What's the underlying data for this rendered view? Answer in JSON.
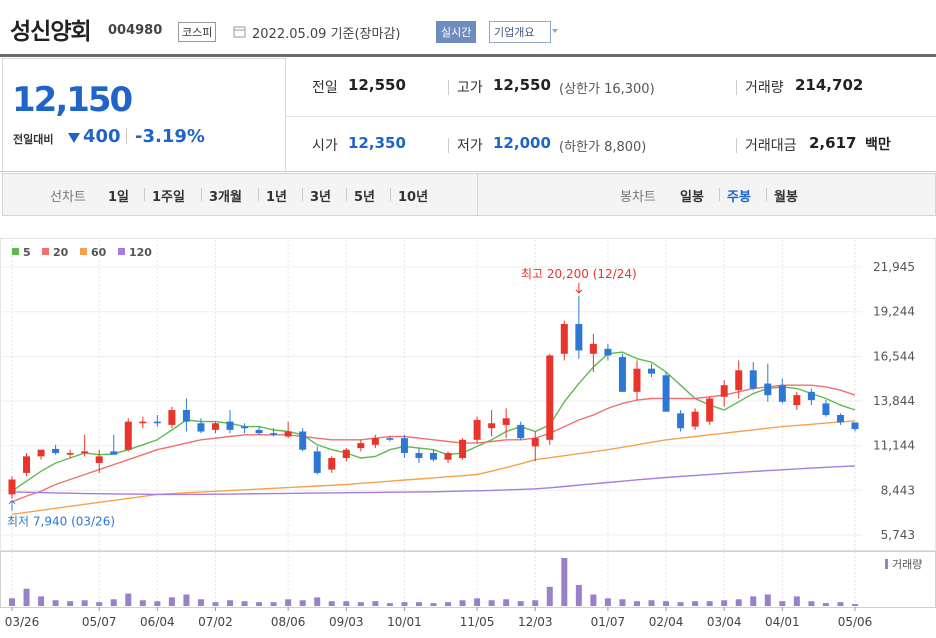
{
  "header": {
    "title": "성신양회",
    "code": "004980",
    "market": "코스피",
    "date": "2022.05.09 기준(장마감)",
    "buttons": [
      "실시간",
      "기업개요"
    ]
  },
  "quote": {
    "price": "12,150",
    "change_label": "전일대비",
    "change": "400",
    "change_rate": "-3.19%",
    "rows": [
      [
        {
          "label": "전일",
          "value": "12,550"
        },
        {
          "label": "고가",
          "value": "12,550",
          "note": "(상한가 16,300)"
        },
        {
          "label": "거래량",
          "value": "214,702"
        }
      ],
      [
        {
          "label": "시가",
          "value": "12,350"
        },
        {
          "label": "저가",
          "value": "12,000",
          "note": "(하한가 8,800)"
        },
        {
          "label": "거래대금",
          "value": "2,617",
          "unit": "백만"
        }
      ]
    ]
  },
  "tabs": {
    "line_label": "선차트",
    "line_periods": [
      "1일",
      "1주일",
      "3개월",
      "1년",
      "3년",
      "5년",
      "10년"
    ],
    "candle_label": "봉차트",
    "candle_periods": [
      "일봉",
      "주봉",
      "월봉"
    ]
  },
  "chart_data": {
    "type": "candlestick",
    "categories": [
      "03/26",
      null,
      null,
      null,
      null,
      null,
      "05/07",
      null,
      null,
      null,
      "06/04",
      null,
      null,
      null,
      "07/02",
      null,
      null,
      null,
      null,
      "08/06",
      null,
      null,
      null,
      "09/03",
      null,
      null,
      null,
      "10/01",
      null,
      null,
      null,
      null,
      "11/05",
      null,
      null,
      null,
      "12/03",
      null,
      null,
      null,
      null,
      "01/07",
      null,
      null,
      null,
      "02/04",
      null,
      null,
      null,
      "03/04",
      null,
      null,
      null,
      "04/01",
      null,
      null,
      null,
      null,
      "05/06"
    ],
    "open": [
      8200,
      9500,
      10500,
      10950,
      10600,
      10700,
      10100,
      10800,
      10900,
      12500,
      12600,
      12400,
      13300,
      12500,
      12100,
      12600,
      12300,
      12100,
      11900,
      11700,
      12000,
      10800,
      9700,
      10400,
      11000,
      11200,
      11600,
      11600,
      10700,
      10700,
      10300,
      10400,
      11500,
      12200,
      12400,
      12400,
      11100,
      11500,
      16700,
      18500,
      16700,
      17000,
      16500,
      14400,
      15800,
      15400,
      13100,
      12300,
      12600,
      14100,
      14500,
      15700,
      14900,
      14800,
      13600,
      14400,
      13700,
      13000,
      12550
    ],
    "high": [
      9300,
      10700,
      10900,
      11200,
      10900,
      11800,
      10900,
      11800,
      12800,
      12900,
      13000,
      13500,
      14000,
      12800,
      12600,
      13300,
      12500,
      12300,
      12200,
      12600,
      12200,
      11100,
      10500,
      11000,
      11500,
      11800,
      11700,
      11800,
      11000,
      10900,
      10800,
      11600,
      12900,
      13300,
      13400,
      12600,
      12000,
      16700,
      18700,
      20200,
      17900,
      17300,
      16700,
      16300,
      16100,
      15600,
      13300,
      13400,
      14100,
      15100,
      16300,
      16200,
      16100,
      15200,
      14400,
      14600,
      13900,
      13100,
      12550
    ],
    "low": [
      7940,
      9300,
      10300,
      10600,
      10400,
      10500,
      9500,
      10600,
      10800,
      12200,
      12300,
      12200,
      12000,
      11900,
      11900,
      11900,
      11900,
      11800,
      11700,
      11600,
      10800,
      9400,
      9500,
      10200,
      10800,
      11000,
      11400,
      10400,
      10100,
      10200,
      10100,
      10300,
      11300,
      11700,
      11600,
      11500,
      10200,
      11200,
      16300,
      16400,
      15600,
      16300,
      14400,
      13900,
      15300,
      13200,
      12000,
      12100,
      12400,
      13500,
      14000,
      14500,
      13800,
      13700,
      13300,
      13600,
      12900,
      12400,
      12000
    ],
    "close": [
      9100,
      10500,
      10900,
      10700,
      10700,
      10800,
      10500,
      10600,
      12600,
      12600,
      12500,
      13300,
      12600,
      12000,
      12500,
      12100,
      12200,
      11900,
      11800,
      12000,
      10900,
      9500,
      10400,
      10900,
      11300,
      11600,
      11500,
      10700,
      10400,
      10300,
      10700,
      11500,
      12700,
      12500,
      12800,
      11600,
      11600,
      16600,
      18500,
      16900,
      17300,
      16600,
      14400,
      15800,
      15500,
      13200,
      12200,
      13200,
      14000,
      14800,
      15700,
      14600,
      14200,
      13800,
      14200,
      13900,
      13000,
      12550,
      12150
    ],
    "up_color": "#e8342b",
    "down_color": "#2c78d4",
    "series": [
      {
        "name": "5",
        "color": "#5dbb4e",
        "values": [
          8400,
          9000,
          9600,
          10100,
          10400,
          10700,
          10600,
          10650,
          10900,
          11200,
          11500,
          12100,
          12700,
          12600,
          12600,
          12500,
          12300,
          12300,
          12100,
          12000,
          11800,
          11200,
          10900,
          10700,
          10400,
          10500,
          10900,
          11100,
          11000,
          10900,
          10600,
          10700,
          11100,
          11500,
          12000,
          12300,
          12000,
          12400,
          13800,
          14900,
          15900,
          16700,
          16800,
          16400,
          16200,
          15600,
          14800,
          14000,
          13600,
          13300,
          13800,
          14300,
          14600,
          14700,
          14600,
          14300,
          14000,
          13600,
          13300
        ]
      },
      {
        "name": "20",
        "color": "#f07070",
        "values": [
          7750,
          8100,
          8400,
          8800,
          9100,
          9400,
          9700,
          10000,
          10300,
          10600,
          10900,
          11100,
          11300,
          11500,
          11600,
          11700,
          11800,
          11800,
          11800,
          11800,
          11700,
          11600,
          11500,
          11500,
          11500,
          11600,
          11700,
          11700,
          11600,
          11500,
          11400,
          11300,
          11300,
          11400,
          11500,
          11500,
          11600,
          11900,
          12300,
          12700,
          13000,
          13400,
          13700,
          13900,
          14000,
          14000,
          14000,
          14000,
          14100,
          14200,
          14400,
          14600,
          14700,
          14800,
          14800,
          14800,
          14700,
          14500,
          14200
        ]
      },
      {
        "name": "60",
        "color": "#f7a24a",
        "values": [
          7000,
          7120,
          7240,
          7360,
          7480,
          7600,
          7720,
          7840,
          7960,
          8080,
          8200,
          8250,
          8300,
          8340,
          8390,
          8430,
          8480,
          8520,
          8570,
          8610,
          8660,
          8710,
          8750,
          8800,
          8870,
          8930,
          9000,
          9070,
          9130,
          9200,
          9270,
          9330,
          9400,
          9600,
          9820,
          10050,
          10300,
          10420,
          10540,
          10660,
          10780,
          10900,
          11050,
          11200,
          11350,
          11500,
          11600,
          11700,
          11800,
          11900,
          12000,
          12100,
          12200,
          12300,
          12370,
          12440,
          12510,
          12580,
          12650
        ]
      },
      {
        "name": "120",
        "color": "#a47ddf",
        "values": [
          8350,
          8330,
          8310,
          8290,
          8270,
          8250,
          8240,
          8230,
          8220,
          8210,
          8200,
          8200,
          8200,
          8200,
          8210,
          8220,
          8230,
          8240,
          8250,
          8260,
          8270,
          8280,
          8290,
          8300,
          8310,
          8320,
          8330,
          8340,
          8350,
          8360,
          8380,
          8400,
          8420,
          8440,
          8470,
          8500,
          8540,
          8600,
          8680,
          8760,
          8840,
          8920,
          9000,
          9080,
          9150,
          9220,
          9290,
          9350,
          9410,
          9470,
          9530,
          9590,
          9640,
          9690,
          9740,
          9790,
          9840,
          9880,
          9920
        ]
      }
    ],
    "volume": {
      "name": "거래량",
      "color": "#9a7fcb",
      "values": [
        320000,
        720000,
        400000,
        240000,
        200000,
        240000,
        160000,
        280000,
        520000,
        240000,
        200000,
        360000,
        480000,
        280000,
        160000,
        240000,
        200000,
        160000,
        160000,
        280000,
        240000,
        360000,
        200000,
        200000,
        160000,
        200000,
        120000,
        160000,
        160000,
        120000,
        160000,
        240000,
        320000,
        240000,
        280000,
        200000,
        240000,
        800000,
        2000000,
        880000,
        480000,
        320000,
        280000,
        200000,
        240000,
        200000,
        160000,
        200000,
        200000,
        240000,
        280000,
        400000,
        480000,
        200000,
        400000,
        200000,
        120000,
        160000,
        80000
      ]
    },
    "high_label": "최고 20,200 (12/24)",
    "low_label": "최저 7,940 (03/26)",
    "ylim": [
      4960,
      22490
    ],
    "yticks": [
      {
        "value": 21945,
        "label": "21,945"
      },
      {
        "value": 19244,
        "label": "19,244"
      },
      {
        "value": 16544,
        "label": "16,544"
      },
      {
        "value": 13844,
        "label": "13,844"
      },
      {
        "value": 11144,
        "label": "11,144"
      },
      {
        "value": 8443,
        "label": "8,443"
      },
      {
        "value": 5743,
        "label": "5,743"
      }
    ],
    "grid": true,
    "legend": "top-left"
  }
}
